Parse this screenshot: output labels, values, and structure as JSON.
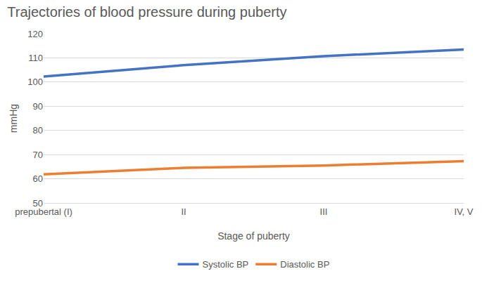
{
  "chart_data": {
    "type": "line",
    "title": "Trajectories of blood pressure during puberty",
    "x_label": "Stage of puberty",
    "y_label": "mmHg",
    "categories": [
      "prepubertal (I)",
      "II",
      "III",
      "IV, V"
    ],
    "series": [
      {
        "name": "Systolic BP",
        "color": "#4472c4",
        "values": [
          102.3,
          107.0,
          110.7,
          113.5
        ]
      },
      {
        "name": "Diastolic BP",
        "color": "#ed7d31",
        "values": [
          61.8,
          64.5,
          65.5,
          67.3
        ]
      }
    ],
    "ylim": [
      50,
      120
    ],
    "yticks": [
      50,
      60,
      70,
      80,
      90,
      100,
      110,
      120
    ],
    "grid": true,
    "legend": "bottom"
  }
}
